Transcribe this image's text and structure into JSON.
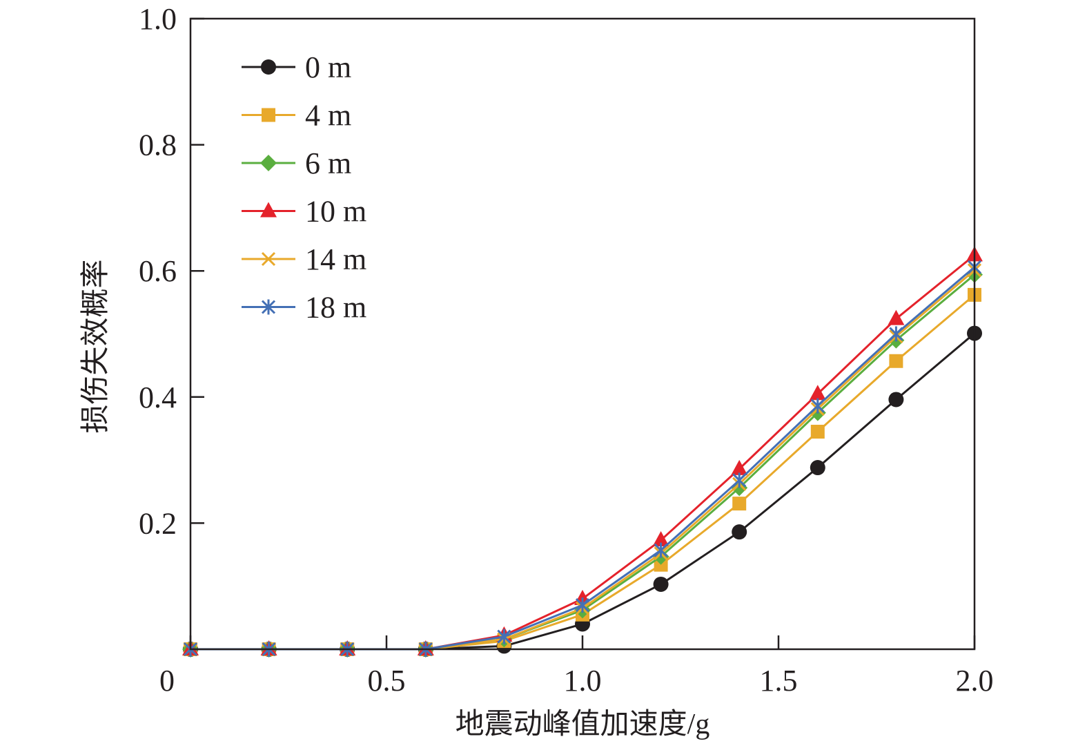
{
  "chart_data": {
    "type": "line",
    "title": "",
    "xlabel": "地震动峰值加速度/g",
    "ylabel": "损伤失效概率",
    "xlim": [
      0,
      2.0
    ],
    "ylim": [
      0,
      1.0
    ],
    "x_ticks": [
      {
        "value": 0,
        "label": "0"
      },
      {
        "value": 0.5,
        "label": "0.5"
      },
      {
        "value": 1.0,
        "label": "1.0"
      },
      {
        "value": 1.5,
        "label": "1.5"
      },
      {
        "value": 2.0,
        "label": "2.0"
      }
    ],
    "y_ticks": [
      {
        "value": 0.2,
        "label": "0.2"
      },
      {
        "value": 0.4,
        "label": "0.4"
      },
      {
        "value": 0.6,
        "label": "0.6"
      },
      {
        "value": 0.8,
        "label": "0.8"
      },
      {
        "value": 1.0,
        "label": "1.0"
      }
    ],
    "grid": false,
    "legend_position": "top-left",
    "x": [
      0,
      0.2,
      0.4,
      0.6,
      0.8,
      1.0,
      1.2,
      1.4,
      1.6,
      1.8,
      2.0
    ],
    "series": [
      {
        "name": "0 m",
        "color": "#231f20",
        "marker": "circle",
        "values": [
          0,
          0,
          0,
          0,
          0.005,
          0.04,
          0.103,
          0.186,
          0.288,
          0.396,
          0.501
        ]
      },
      {
        "name": "4 m",
        "color": "#e8a92b",
        "marker": "square",
        "values": [
          0,
          0,
          0,
          0,
          0.013,
          0.055,
          0.134,
          0.231,
          0.345,
          0.457,
          0.562
        ]
      },
      {
        "name": "6 m",
        "color": "#5aae3f",
        "marker": "diamond",
        "values": [
          0,
          0,
          0,
          0,
          0.016,
          0.062,
          0.147,
          0.256,
          0.375,
          0.49,
          0.594
        ]
      },
      {
        "name": "10 m",
        "color": "#e4222b",
        "marker": "triangle",
        "values": [
          0,
          0,
          0,
          0,
          0.022,
          0.08,
          0.173,
          0.286,
          0.405,
          0.524,
          0.625
        ]
      },
      {
        "name": "14 m",
        "color": "#e8a92b",
        "marker": "x",
        "values": [
          0,
          0,
          0,
          0,
          0.016,
          0.065,
          0.152,
          0.262,
          0.381,
          0.496,
          0.601
        ]
      },
      {
        "name": "18 m",
        "color": "#4470b5",
        "marker": "asterisk",
        "values": [
          0,
          0,
          0,
          0,
          0.02,
          0.07,
          0.157,
          0.268,
          0.386,
          0.5,
          0.606
        ]
      }
    ]
  }
}
